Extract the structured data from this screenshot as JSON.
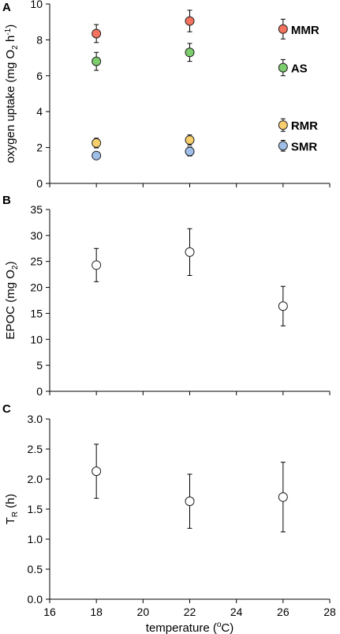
{
  "chart_data": [
    {
      "panel": "A",
      "type": "scatter",
      "xlabel": "",
      "ylabel_main": "oxygen uptake (mg O",
      "ylabel_sub": "2",
      "ylabel_mid": " h",
      "ylabel_sup": "-1",
      "ylabel_end": ")",
      "xlim": [
        16,
        28
      ],
      "ylim": [
        0,
        10
      ],
      "yticks": [
        0,
        2,
        4,
        6,
        8,
        10
      ],
      "xticks": [
        16,
        18,
        20,
        22,
        24,
        26,
        28
      ],
      "show_xtick_labels": false,
      "series": [
        {
          "name": "MMR",
          "color": "#f4735f",
          "points": [
            {
              "x": 18,
              "y": 8.35,
              "err": 0.5
            },
            {
              "x": 22,
              "y": 9.05,
              "err": 0.6
            }
          ]
        },
        {
          "name": "AS",
          "color": "#7ccd6b",
          "points": [
            {
              "x": 18,
              "y": 6.8,
              "err": 0.5
            },
            {
              "x": 22,
              "y": 7.3,
              "err": 0.5
            }
          ]
        },
        {
          "name": "RMR",
          "color": "#f8cf6c",
          "points": [
            {
              "x": 18,
              "y": 2.25,
              "err": 0.27
            },
            {
              "x": 22,
              "y": 2.42,
              "err": 0.28
            }
          ]
        },
        {
          "name": "SMR",
          "color": "#9fbfe9",
          "points": [
            {
              "x": 18,
              "y": 1.55,
              "err": 0.2
            },
            {
              "x": 22,
              "y": 1.78,
              "err": 0.25
            }
          ]
        }
      ],
      "legend": [
        {
          "name": "MMR",
          "color": "#f4735f",
          "y": 8.6,
          "err": 0.55
        },
        {
          "name": "AS",
          "color": "#7ccd6b",
          "y": 6.45,
          "err": 0.45
        },
        {
          "name": "RMR",
          "color": "#f8cf6c",
          "y": 3.25,
          "err": 0.35
        },
        {
          "name": "SMR",
          "color": "#9fbfe9",
          "y": 2.1,
          "err": 0.3
        }
      ],
      "legend_x": 26
    },
    {
      "panel": "B",
      "type": "scatter",
      "xlabel": "",
      "ylabel_main": "EPOC (mg O",
      "ylabel_sub": "2",
      "ylabel_end": ")",
      "xlim": [
        16,
        28
      ],
      "ylim": [
        0,
        35
      ],
      "yticks": [
        0,
        5,
        10,
        15,
        20,
        25,
        30,
        35
      ],
      "xticks": [
        16,
        18,
        20,
        22,
        24,
        26,
        28
      ],
      "show_xtick_labels": false,
      "series": [
        {
          "name": "",
          "color": "#ffffff",
          "points": [
            {
              "x": 18,
              "y": 24.3,
              "err": 3.2
            },
            {
              "x": 22,
              "y": 26.8,
              "err": 4.5
            },
            {
              "x": 26,
              "y": 16.4,
              "err": 3.8
            }
          ]
        }
      ]
    },
    {
      "panel": "C",
      "type": "scatter",
      "xlabel": "temperature (",
      "xlabel_sup": "o",
      "xlabel_end": "C)",
      "ylabel_main": "T",
      "ylabel_sub": "R",
      "ylabel_end": " (h)",
      "xlim": [
        16,
        28
      ],
      "ylim": [
        0,
        3
      ],
      "yticks": [
        "0.0",
        "0.5",
        "1.0",
        "1.5",
        "2.0",
        "2.5",
        "3.0"
      ],
      "xticks": [
        16,
        18,
        20,
        22,
        24,
        26,
        28
      ],
      "show_xtick_labels": true,
      "series": [
        {
          "name": "",
          "color": "#ffffff",
          "points": [
            {
              "x": 18,
              "y": 2.13,
              "err": 0.45
            },
            {
              "x": 22,
              "y": 1.63,
              "err": 0.45
            },
            {
              "x": 26,
              "y": 1.7,
              "err": 0.58
            }
          ]
        }
      ]
    }
  ]
}
